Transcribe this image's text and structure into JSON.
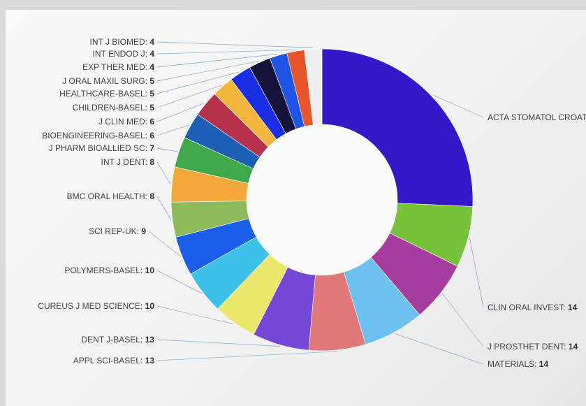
{
  "chart_data": {
    "type": "pie",
    "donut": true,
    "title": "",
    "slices": [
      {
        "name": "ACTA STOMATOL CROAT",
        "value": 55,
        "value_label": "",
        "color": "#3317c9"
      },
      {
        "name": "CLIN ORAL INVEST",
        "value": 14,
        "value_label": "14",
        "color": "#77c23a"
      },
      {
        "name": "J PROSTHET DENT",
        "value": 14,
        "value_label": "14",
        "color": "#a63c9e"
      },
      {
        "name": "MATERIALS",
        "value": 14,
        "value_label": "14",
        "color": "#6ec1ef"
      },
      {
        "name": "APPL SCI-BASEL",
        "value": 13,
        "value_label": "13",
        "color": "#e0777b"
      },
      {
        "name": "DENT J-BASEL",
        "value": 13,
        "value_label": "13",
        "color": "#7448d6"
      },
      {
        "name": "CUREUS J MED SCIENCE",
        "value": 10,
        "value_label": "10",
        "color": "#e9e86a"
      },
      {
        "name": "POLYMERS-BASEL",
        "value": 10,
        "value_label": "10",
        "color": "#3ec1e8"
      },
      {
        "name": "SCI REP-UK",
        "value": 9,
        "value_label": "9",
        "color": "#1b5ee9"
      },
      {
        "name": "BMC ORAL HEALTH",
        "value": 8,
        "value_label": "8",
        "color": "#8dbb5c"
      },
      {
        "name": "INT J DENT",
        "value": 8,
        "value_label": "8",
        "color": "#f2a93a"
      },
      {
        "name": "J PHARM BIOALLIED SC",
        "value": 7,
        "value_label": "7",
        "color": "#3ea94a"
      },
      {
        "name": "BIOENGINEERING-BASEL",
        "value": 6,
        "value_label": "6",
        "color": "#1d5fb5"
      },
      {
        "name": "J CLIN MED",
        "value": 6,
        "value_label": "6",
        "color": "#b6324b"
      },
      {
        "name": "CHILDREN-BASEL",
        "value": 5,
        "value_label": "5",
        "color": "#f3b63c"
      },
      {
        "name": "HEALTHCARE-BASEL",
        "value": 5,
        "value_label": "5",
        "color": "#1a2fe3"
      },
      {
        "name": "J ORAL MAXIL SURG",
        "value": 5,
        "value_label": "5",
        "color": "#12123a"
      },
      {
        "name": "EXP THER MED",
        "value": 4,
        "value_label": "4",
        "color": "#1f55e6"
      },
      {
        "name": "INT ENDOD J",
        "value": 4,
        "value_label": "4",
        "color": "#e8552a"
      },
      {
        "name": "INT J BIOMED",
        "value": 4,
        "value_label": "4",
        "color": "#f0f0f0"
      }
    ]
  }
}
